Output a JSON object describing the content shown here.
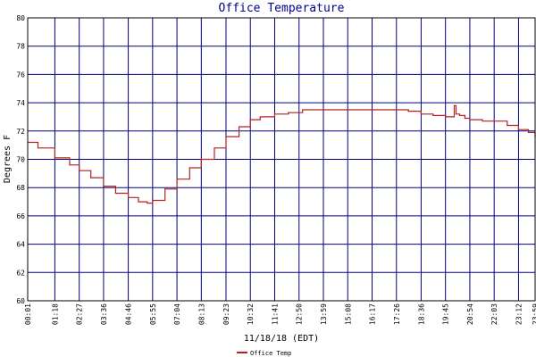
{
  "chart_data": {
    "type": "line",
    "title": "Office Temperature",
    "xlabel": "11/18/18 (EDT)",
    "ylabel": "Degrees F",
    "ylim": [
      60,
      80
    ],
    "yticks": [
      "60",
      "62",
      "64",
      "66",
      "68",
      "70",
      "72",
      "74",
      "76",
      "78",
      "80"
    ],
    "xticks": [
      "00:01",
      "01:18",
      "02:27",
      "03:36",
      "04:46",
      "05:55",
      "07:04",
      "08:13",
      "09:23",
      "10:32",
      "11:41",
      "12:50",
      "13:59",
      "15:08",
      "16:17",
      "17:26",
      "18:36",
      "19:45",
      "20:54",
      "22:03",
      "23:12",
      "23:59"
    ],
    "grid": true,
    "legend_position": "bottom",
    "series": [
      {
        "name": "Office Temp",
        "color": "#b22222",
        "x": [
          "00:01",
          "00:30",
          "01:18",
          "02:00",
          "02:27",
          "03:00",
          "03:36",
          "04:10",
          "04:46",
          "05:15",
          "05:40",
          "05:55",
          "06:30",
          "07:04",
          "07:40",
          "08:13",
          "08:50",
          "09:23",
          "10:00",
          "10:32",
          "11:00",
          "11:41",
          "12:20",
          "12:50",
          "13:00",
          "13:59",
          "15:08",
          "16:17",
          "17:26",
          "18:00",
          "18:36",
          "19:10",
          "19:45",
          "20:05",
          "20:10",
          "20:15",
          "20:25",
          "20:40",
          "20:54",
          "21:30",
          "22:03",
          "22:40",
          "23:12",
          "23:40",
          "23:59"
        ],
        "y": [
          71.2,
          70.8,
          70.1,
          69.6,
          69.2,
          68.7,
          68.1,
          67.6,
          67.3,
          67.0,
          66.9,
          67.1,
          67.9,
          68.6,
          69.4,
          70.0,
          70.8,
          71.6,
          72.3,
          72.8,
          73.0,
          73.2,
          73.3,
          73.3,
          73.5,
          73.5,
          73.5,
          73.5,
          73.5,
          73.4,
          73.2,
          73.1,
          73.0,
          73.0,
          73.8,
          73.2,
          73.1,
          72.9,
          72.8,
          72.7,
          72.7,
          72.4,
          72.1,
          71.9,
          71.6
        ]
      }
    ]
  }
}
